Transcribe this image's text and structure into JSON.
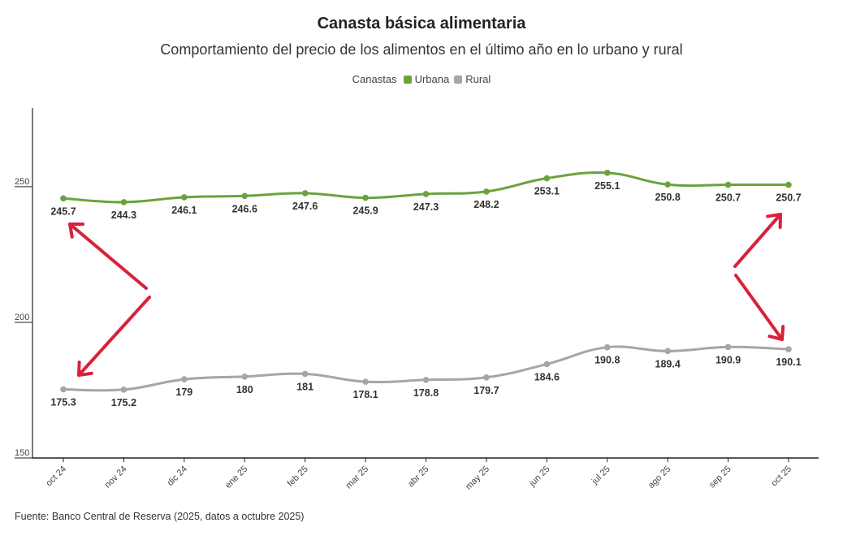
{
  "chart_data": {
    "type": "line",
    "title": "Canasta básica alimentaria",
    "subtitle": "Comportamiento del precio de los alimentos en el último año en lo urbano y rural",
    "legend_title": "Canastas",
    "categories": [
      "oct 24",
      "nov 24",
      "dic 24",
      "ene 25",
      "feb 25",
      "mar 25",
      "abr 25",
      "may 25",
      "jun 25",
      "jul 25",
      "ago 25",
      "sep 25",
      "oct 25"
    ],
    "series": [
      {
        "name": "Urbana",
        "color": "#6aa33d",
        "values": [
          245.7,
          244.3,
          246.1,
          246.6,
          247.6,
          245.9,
          247.3,
          248.2,
          253.1,
          255.1,
          250.8,
          250.7,
          250.7
        ]
      },
      {
        "name": "Rural",
        "color": "#a6a6a6",
        "values": [
          175.3,
          175.2,
          179,
          180,
          181,
          178.1,
          178.8,
          179.7,
          184.6,
          190.8,
          189.4,
          190.9,
          190.1
        ]
      }
    ],
    "data_labels": {
      "Urbana": [
        "245.7",
        "244.3",
        "246.1",
        "246.6",
        "247.6",
        "245.9",
        "247.3",
        "248.2",
        "253.1",
        "255.1",
        "250.8",
        "250.7",
        "250.7"
      ],
      "Rural": [
        "175.3",
        "175.2",
        "179",
        "180",
        "181",
        "178.1",
        "178.8",
        "179.7",
        "184.6",
        "190.8",
        "189.4",
        "190.9",
        "190.1"
      ]
    },
    "y_ticks": [
      150,
      200,
      250
    ],
    "ylim": [
      150,
      279
    ],
    "xlabel": "",
    "ylabel": "",
    "arrow_color": "#d8213a"
  },
  "source": "Fuente: Banco Central de Reserva (2025, datos a octubre 2025)"
}
